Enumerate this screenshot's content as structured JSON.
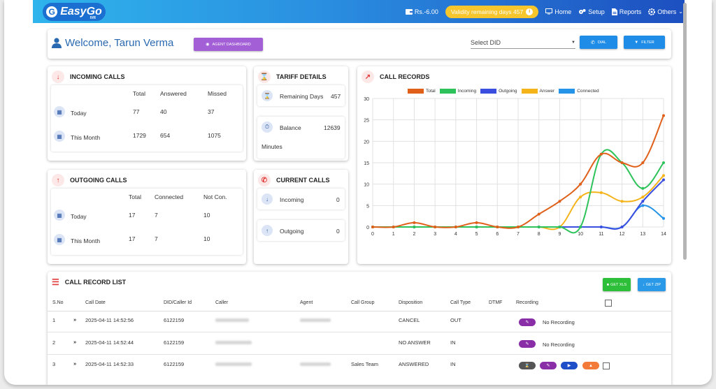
{
  "header": {
    "logo_text": "EasyGo",
    "logo_sub": "IVR",
    "balance": "Rs.-6.00",
    "validity": "Validity remaining days 457",
    "nav": [
      {
        "label": "Home",
        "icon": "monitor-icon"
      },
      {
        "label": "Setup",
        "icon": "gears-icon"
      },
      {
        "label": "Reports",
        "icon": "document-icon"
      },
      {
        "label": "Others",
        "icon": "gear-icon"
      }
    ]
  },
  "welcome": {
    "greeting": "Welcome, Tarun Verma",
    "agent_dashboard": "AGENT DASHBOARD",
    "select_did": "Select DID",
    "dial": "DIAL",
    "filter": "FILTER"
  },
  "incoming": {
    "title": "INCOMING CALLS",
    "headers": [
      "Total",
      "Answered",
      "Missed"
    ],
    "rows": [
      {
        "label": "Today",
        "values": [
          "77",
          "40",
          "37"
        ]
      },
      {
        "label": "This Month",
        "values": [
          "1729",
          "654",
          "1075"
        ]
      }
    ]
  },
  "outgoing": {
    "title": "OUTGOING CALLS",
    "headers": [
      "Total",
      "Connected",
      "Not Con."
    ],
    "rows": [
      {
        "label": "Today",
        "values": [
          "17",
          "7",
          "10"
        ]
      },
      {
        "label": "This Month",
        "values": [
          "17",
          "7",
          "10"
        ]
      }
    ]
  },
  "tariff": {
    "title": "TARIFF DETAILS",
    "remaining_label": "Remaining Days",
    "remaining_value": "457",
    "balance_label": "Balance",
    "balance_value": "12639",
    "minutes_label": "Minutes"
  },
  "current": {
    "title": "CURRENT CALLS",
    "incoming_label": "Incoming",
    "incoming_value": "0",
    "outgoing_label": "Outgoing",
    "outgoing_value": "0"
  },
  "chart_data": {
    "type": "line",
    "title": "CALL RECORDS",
    "x": [
      0,
      1,
      2,
      3,
      4,
      5,
      6,
      7,
      8,
      9,
      10,
      11,
      12,
      13,
      14
    ],
    "ylim": [
      0,
      30
    ],
    "yticks": [
      0,
      5,
      10,
      15,
      20,
      25,
      30
    ],
    "grid": true,
    "legend_position": "top",
    "series": [
      {
        "name": "Total",
        "color": "#e0601a",
        "values": [
          0,
          0,
          1,
          0,
          0,
          1,
          0,
          0,
          3,
          6,
          10,
          17,
          15,
          15,
          26
        ]
      },
      {
        "name": "Incoming",
        "color": "#2ec35a",
        "values": [
          0,
          0,
          0,
          0,
          0,
          0,
          0,
          0,
          0,
          0,
          0,
          17,
          15,
          9,
          15
        ]
      },
      {
        "name": "Outgoing",
        "color": "#3a4fe0",
        "values": [
          0,
          0,
          0,
          0,
          0,
          0,
          0,
          0,
          0,
          0,
          0,
          0,
          0,
          6,
          11
        ]
      },
      {
        "name": "Answer",
        "color": "#f5b31a",
        "values": [
          0,
          0,
          0,
          0,
          0,
          0,
          0,
          0,
          0,
          0,
          7,
          8,
          6,
          7,
          12
        ]
      },
      {
        "name": "Connected",
        "color": "#2593e8",
        "values": [
          0,
          0,
          0,
          0,
          0,
          0,
          0,
          0,
          0,
          0,
          0,
          0,
          0,
          5,
          2
        ]
      }
    ]
  },
  "records": {
    "title": "CALL RECORD LIST",
    "get_xls": "GET XLS",
    "get_zip": "GET ZIP",
    "columns": [
      "S.No",
      "Call Date",
      "DID/Caller Id",
      "Caller",
      "Agent",
      "Call Group",
      "Disposition",
      "Call Type",
      "DTMF",
      "Recording"
    ],
    "rows": [
      {
        "sno": "1",
        "date": "2025-04-11 14:52:56",
        "did": "6122159",
        "group": "",
        "disposition": "CANCEL",
        "type": "OUT",
        "recording": "No Recording"
      },
      {
        "sno": "2",
        "date": "2025-04-11 14:52:44",
        "did": "6122159",
        "group": "",
        "disposition": "NO ANSWER",
        "type": "IN",
        "recording": "No Recording"
      },
      {
        "sno": "3",
        "date": "2025-04-11 14:52:33",
        "did": "6122159",
        "group": "Sales Team",
        "disposition": "ANSWERED",
        "type": "IN",
        "recording": ""
      }
    ]
  }
}
